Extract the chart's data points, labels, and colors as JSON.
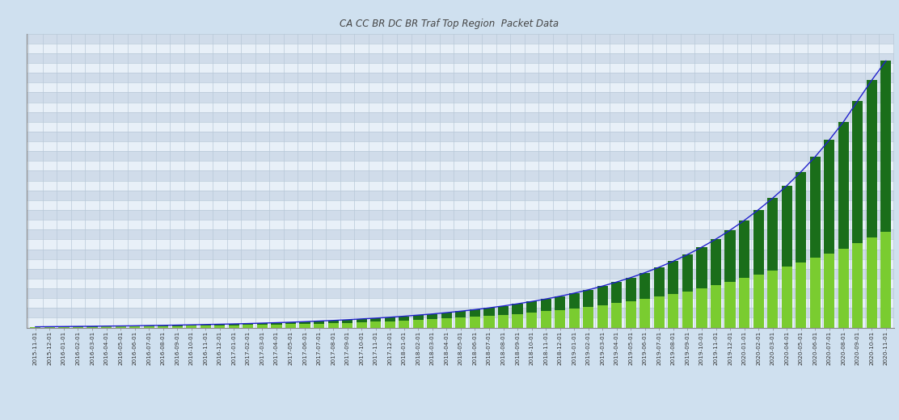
{
  "title": "CA CC BR DC BR Traf Top Region  Packet Data",
  "background_color": "#cfe0ef",
  "plot_background_light": "#e8f0f8",
  "plot_background_dark": "#d0dcea",
  "bar_color_dark": "#1a6e1a",
  "bar_color_light": "#7acc30",
  "line_color": "#2020cc",
  "grid_color": "#b8c8d8",
  "dates": [
    "2015-11-01",
    "2015-12-01",
    "2016-01-01",
    "2016-02-01",
    "2016-03-01",
    "2016-04-01",
    "2016-05-01",
    "2016-06-01",
    "2016-07-01",
    "2016-08-01",
    "2016-09-01",
    "2016-10-01",
    "2016-11-01",
    "2016-12-01",
    "2017-01-01",
    "2017-02-01",
    "2017-03-01",
    "2017-04-01",
    "2017-05-01",
    "2017-06-01",
    "2017-07-01",
    "2017-08-01",
    "2017-09-01",
    "2017-10-01",
    "2017-11-01",
    "2017-12-01",
    "2018-01-01",
    "2018-02-01",
    "2018-03-01",
    "2018-04-01",
    "2018-05-01",
    "2018-06-01",
    "2018-07-01",
    "2018-08-01",
    "2018-09-01",
    "2018-10-01",
    "2018-11-01",
    "2018-12-01",
    "2019-01-01",
    "2019-02-01",
    "2019-03-01",
    "2019-04-01",
    "2019-05-01",
    "2019-06-01",
    "2019-07-01",
    "2019-08-01",
    "2019-09-01",
    "2019-10-01",
    "2019-11-01",
    "2019-12-01",
    "2020-01-01",
    "2020-02-01",
    "2020-03-01",
    "2020-04-01",
    "2020-05-01",
    "2020-06-01",
    "2020-07-01",
    "2020-08-01",
    "2020-09-01",
    "2020-10-01",
    "2020-11-01"
  ],
  "light_green_values": [
    1.0,
    1.2,
    1.3,
    1.5,
    1.6,
    1.8,
    2.0,
    2.2,
    2.5,
    2.7,
    3.0,
    3.3,
    3.7,
    4.0,
    4.4,
    4.8,
    5.3,
    5.8,
    6.4,
    7.0,
    7.7,
    8.4,
    9.2,
    10.1,
    11.0,
    12.0,
    13.1,
    14.3,
    15.5,
    16.9,
    18.4,
    20.0,
    21.8,
    23.7,
    25.8,
    28.0,
    30.4,
    33.0,
    35.8,
    38.8,
    42.1,
    45.6,
    49.4,
    53.5,
    58.0,
    62.8,
    68.0,
    73.5,
    79.5,
    85.8,
    92.5,
    99.5,
    107.0,
    114.5,
    122.5,
    130.5,
    139.0,
    148.0,
    158.0,
    168.0,
    179.0
  ],
  "dark_green_values": [
    0.5,
    0.6,
    0.7,
    0.8,
    0.9,
    1.0,
    1.1,
    1.2,
    1.4,
    1.5,
    1.7,
    1.9,
    2.1,
    2.3,
    2.5,
    2.8,
    3.1,
    3.4,
    3.7,
    4.1,
    4.6,
    5.0,
    5.5,
    6.1,
    6.7,
    7.4,
    8.2,
    9.1,
    10.0,
    11.1,
    12.3,
    13.6,
    15.1,
    16.8,
    18.7,
    20.8,
    23.1,
    25.7,
    28.6,
    31.9,
    35.6,
    39.7,
    44.2,
    49.3,
    55.0,
    61.5,
    68.7,
    76.9,
    86.1,
    96.4,
    108.0,
    121.0,
    135.0,
    151.0,
    169.0,
    189.0,
    212.0,
    237.0,
    266.0,
    295.0,
    320.0
  ],
  "ylim_max": 550,
  "n_grid_rows": 30,
  "n_grid_cols": 61
}
